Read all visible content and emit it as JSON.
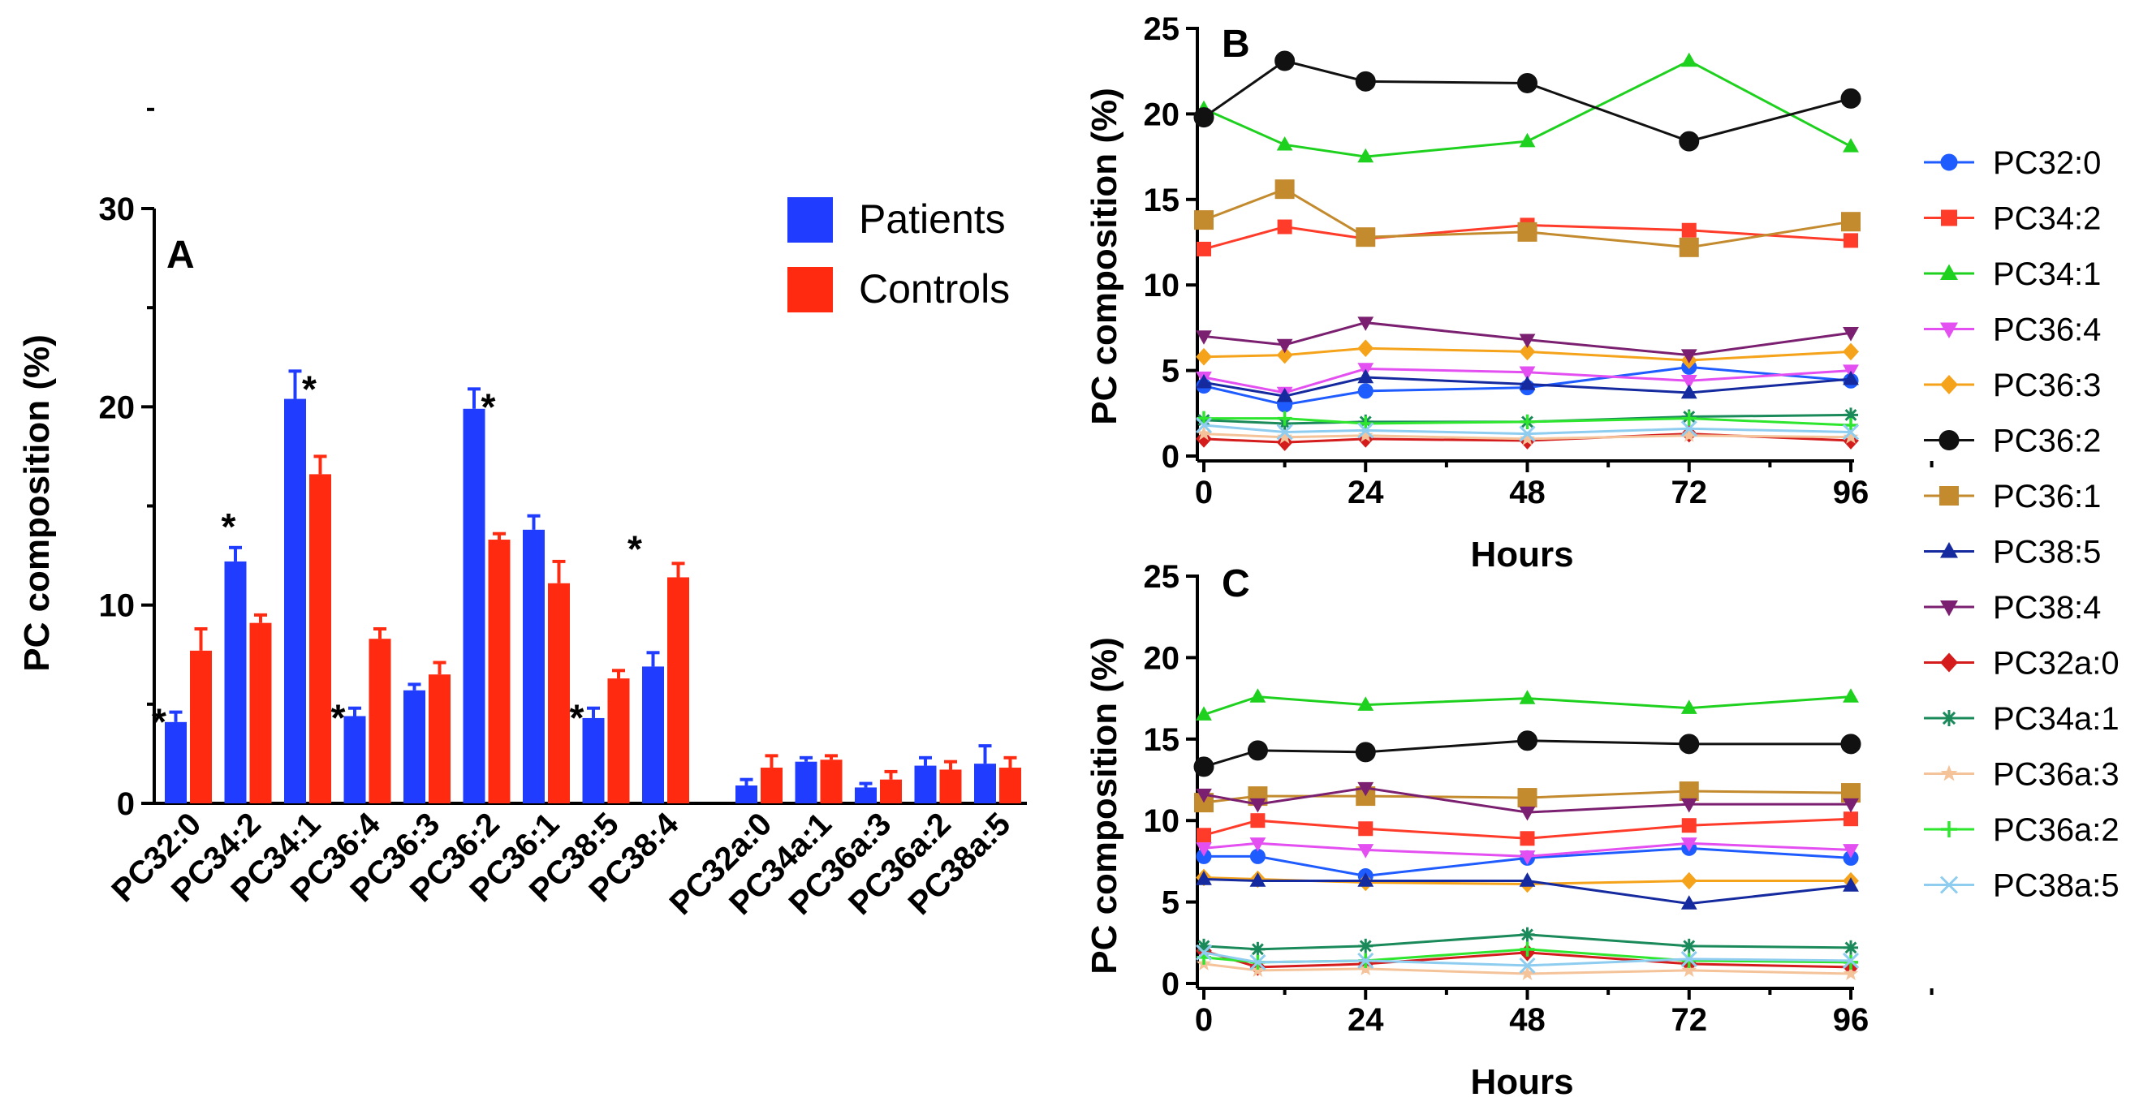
{
  "chart_data": [
    {
      "type": "bar",
      "panel": "A",
      "ylabel": "PC composition (%)",
      "xlabel": "",
      "ylim": [
        0,
        30
      ],
      "yticks": [
        0,
        10,
        20,
        30
      ],
      "legend_position": "top-right",
      "categories": [
        "PC32:0",
        "PC34:2",
        "PC34:1",
        "PC36:4",
        "PC36:3",
        "PC36:2",
        "PC36:1",
        "PC38:5",
        "PC38:4",
        "PC32a:0",
        "PC34a:1",
        "PC36a:3",
        "PC36a:2",
        "PC38a:5"
      ],
      "series": [
        {
          "name": "Patients",
          "color": "#1f3cff",
          "values": [
            4.1,
            12.2,
            20.4,
            4.4,
            5.7,
            19.9,
            13.8,
            4.3,
            6.9,
            0.9,
            2.1,
            0.8,
            1.9,
            2.0
          ],
          "errors": [
            0.5,
            0.7,
            1.4,
            0.4,
            0.3,
            1.0,
            0.7,
            0.5,
            0.7,
            0.3,
            0.2,
            0.2,
            0.4,
            0.9
          ]
        },
        {
          "name": "Controls",
          "color": "#ff2a10",
          "values": [
            7.7,
            9.1,
            16.6,
            8.3,
            6.5,
            13.3,
            11.1,
            6.3,
            11.4,
            1.8,
            2.2,
            1.2,
            1.7,
            1.8
          ],
          "errors": [
            1.1,
            0.4,
            0.9,
            0.5,
            0.6,
            0.3,
            1.1,
            0.4,
            0.7,
            0.6,
            0.2,
            0.4,
            0.4,
            0.5
          ]
        }
      ],
      "annotations": [
        {
          "category": "PC32:0",
          "text": "*"
        },
        {
          "category": "PC34:2",
          "text": "*"
        },
        {
          "category": "PC34:1",
          "text": "*"
        },
        {
          "category": "PC36:4",
          "text": "*"
        },
        {
          "category": "PC36:2",
          "text": "*"
        },
        {
          "category": "PC38:5",
          "text": "*"
        },
        {
          "category": "PC38:4",
          "text": "*"
        }
      ]
    },
    {
      "type": "line",
      "panel": "B",
      "xlabel": "Hours",
      "ylabel": "PC composition (%)",
      "xlim": [
        0,
        96
      ],
      "ylim": [
        0,
        25
      ],
      "xticks": [
        0,
        24,
        48,
        72,
        96
      ],
      "yticks": [
        0,
        5,
        10,
        15,
        20,
        25
      ],
      "x": [
        0,
        12,
        24,
        48,
        72,
        96
      ],
      "series": [
        {
          "name": "PC32:0",
          "values": [
            4.1,
            3.0,
            3.8,
            4.0,
            5.2,
            4.4
          ]
        },
        {
          "name": "PC34:2",
          "values": [
            12.1,
            13.4,
            12.7,
            13.5,
            13.2,
            12.6
          ]
        },
        {
          "name": "PC34:1",
          "values": [
            20.3,
            18.2,
            17.5,
            18.4,
            23.1,
            18.1
          ]
        },
        {
          "name": "PC36:4",
          "values": [
            4.6,
            3.7,
            5.1,
            4.9,
            4.4,
            5.0
          ]
        },
        {
          "name": "PC36:3",
          "values": [
            5.8,
            5.9,
            6.3,
            6.1,
            5.6,
            6.1
          ]
        },
        {
          "name": "PC36:2",
          "values": [
            19.8,
            23.1,
            21.9,
            21.8,
            18.4,
            20.9
          ]
        },
        {
          "name": "PC36:1",
          "values": [
            13.8,
            15.6,
            12.8,
            13.1,
            12.2,
            13.7
          ]
        },
        {
          "name": "PC38:5",
          "values": [
            4.3,
            3.5,
            4.6,
            4.2,
            3.7,
            4.5
          ]
        },
        {
          "name": "PC38:4",
          "values": [
            7.0,
            6.5,
            7.8,
            6.8,
            5.9,
            7.2
          ]
        },
        {
          "name": "PC32a:0",
          "values": [
            1.0,
            0.8,
            1.0,
            0.9,
            1.3,
            0.9
          ]
        },
        {
          "name": "PC34a:1",
          "values": [
            2.1,
            1.9,
            2.0,
            2.0,
            2.3,
            2.4
          ]
        },
        {
          "name": "PC36a:3",
          "values": [
            1.3,
            1.1,
            1.2,
            1.0,
            1.2,
            1.1
          ]
        },
        {
          "name": "PC36a:2",
          "values": [
            2.2,
            2.2,
            1.9,
            2.0,
            2.2,
            1.8
          ]
        },
        {
          "name": "PC38a:5",
          "values": [
            1.8,
            1.4,
            1.5,
            1.3,
            1.6,
            1.4
          ]
        }
      ]
    },
    {
      "type": "line",
      "panel": "C",
      "xlabel": "Hours",
      "ylabel": "PC composition (%)",
      "xlim": [
        0,
        96
      ],
      "ylim": [
        0,
        25
      ],
      "xticks": [
        0,
        24,
        48,
        72,
        96
      ],
      "yticks": [
        0,
        5,
        10,
        15,
        20,
        25
      ],
      "x": [
        0,
        8,
        24,
        48,
        72,
        96
      ],
      "series": [
        {
          "name": "PC32:0",
          "values": [
            7.8,
            7.8,
            6.6,
            7.7,
            8.3,
            7.7
          ]
        },
        {
          "name": "PC34:2",
          "values": [
            9.1,
            10.0,
            9.5,
            8.9,
            9.7,
            10.1
          ]
        },
        {
          "name": "PC34:1",
          "values": [
            16.5,
            17.6,
            17.1,
            17.5,
            16.9,
            17.6
          ]
        },
        {
          "name": "PC36:4",
          "values": [
            8.3,
            8.6,
            8.2,
            7.8,
            8.6,
            8.2
          ]
        },
        {
          "name": "PC36:3",
          "values": [
            6.5,
            6.4,
            6.2,
            6.1,
            6.3,
            6.3
          ]
        },
        {
          "name": "PC36:2",
          "values": [
            13.3,
            14.3,
            14.2,
            14.9,
            14.7,
            14.7
          ]
        },
        {
          "name": "PC36:1",
          "values": [
            11.1,
            11.5,
            11.5,
            11.4,
            11.8,
            11.7
          ]
        },
        {
          "name": "PC38:5",
          "values": [
            6.4,
            6.3,
            6.3,
            6.3,
            4.9,
            6.0
          ]
        },
        {
          "name": "PC38:4",
          "values": [
            11.6,
            11.0,
            12.0,
            10.5,
            11.0,
            11.0
          ]
        },
        {
          "name": "PC32a:0",
          "values": [
            2.0,
            1.0,
            1.2,
            1.9,
            1.2,
            1.0
          ]
        },
        {
          "name": "PC34a:1",
          "values": [
            2.3,
            2.1,
            2.3,
            3.0,
            2.3,
            2.2
          ]
        },
        {
          "name": "PC36a:3",
          "values": [
            1.2,
            0.8,
            0.9,
            0.6,
            0.8,
            0.6
          ]
        },
        {
          "name": "PC36a:2",
          "values": [
            1.6,
            1.3,
            1.4,
            2.1,
            1.4,
            1.3
          ]
        },
        {
          "name": "PC38a:5",
          "values": [
            1.9,
            1.3,
            1.4,
            1.1,
            1.5,
            1.4
          ]
        }
      ]
    }
  ],
  "legend": {
    "items": [
      {
        "name": "PC32:0",
        "color": "#1f5cff",
        "marker": "circle"
      },
      {
        "name": "PC34:2",
        "color": "#ff3b2a",
        "marker": "square"
      },
      {
        "name": "PC34:1",
        "color": "#1fd11f",
        "marker": "triangle-up"
      },
      {
        "name": "PC36:4",
        "color": "#e34ff0",
        "marker": "triangle-down"
      },
      {
        "name": "PC36:3",
        "color": "#f5a31a",
        "marker": "diamond"
      },
      {
        "name": "PC36:2",
        "color": "#111111",
        "marker": "circle"
      },
      {
        "name": "PC36:1",
        "color": "#c38a2e",
        "marker": "square"
      },
      {
        "name": "PC38:5",
        "color": "#152a9e",
        "marker": "triangle-up"
      },
      {
        "name": "PC38:4",
        "color": "#7b2070",
        "marker": "triangle-down"
      },
      {
        "name": "PC32a:0",
        "color": "#d41c1c",
        "marker": "diamond"
      },
      {
        "name": "PC34a:1",
        "color": "#1a8a5a",
        "marker": "asterisk"
      },
      {
        "name": "PC36a:3",
        "color": "#f5c39a",
        "marker": "star"
      },
      {
        "name": "PC36a:2",
        "color": "#2ee62e",
        "marker": "plus"
      },
      {
        "name": "PC38a:5",
        "color": "#8ecdf0",
        "marker": "x"
      }
    ]
  }
}
